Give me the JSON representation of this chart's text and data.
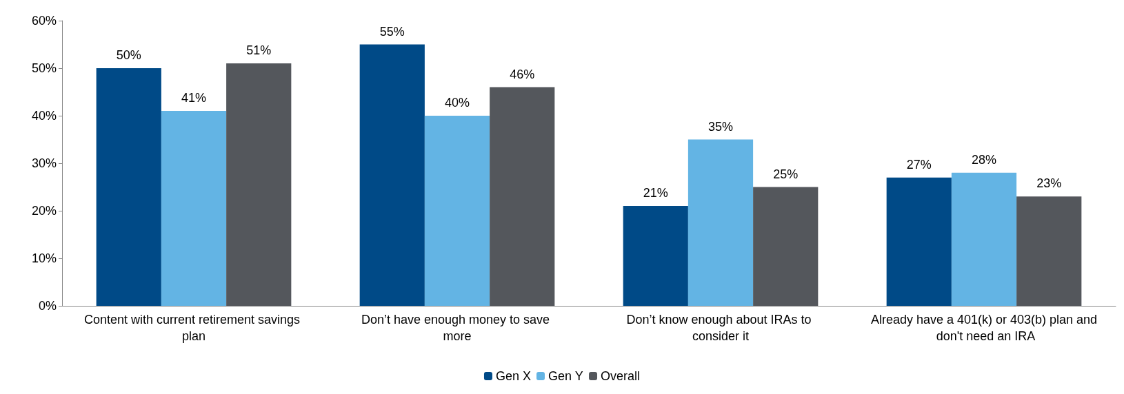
{
  "chart_data": {
    "type": "bar",
    "categories": [
      "Content with current retirement savings plan",
      "Don’t have enough money to save more",
      "Don’t know enough about IRAs to consider it",
      "Already have a 401(k) or 403(b) plan and don't need an IRA"
    ],
    "series": [
      {
        "name": "Gen X",
        "color": "#004a87",
        "values": [
          50,
          55,
          21,
          27
        ],
        "value_labels": [
          "50%",
          "55%",
          "21%",
          "27%"
        ]
      },
      {
        "name": "Gen Y",
        "color": "#63b4e4",
        "values": [
          41,
          40,
          35,
          28
        ],
        "value_labels": [
          "41%",
          "40%",
          "35%",
          "28%"
        ]
      },
      {
        "name": "Overall",
        "color": "#54575c",
        "values": [
          51,
          46,
          25,
          23
        ],
        "value_labels": [
          "51%",
          "46%",
          "25%",
          "23%"
        ]
      }
    ],
    "ylim": [
      0,
      60
    ],
    "yticks": [
      {
        "value": 0,
        "label": "0%"
      },
      {
        "value": 10,
        "label": "10%"
      },
      {
        "value": 20,
        "label": "20%"
      },
      {
        "value": 30,
        "label": "30%"
      },
      {
        "value": 40,
        "label": "40%"
      },
      {
        "value": 50,
        "label": "50%"
      },
      {
        "value": 60,
        "label": "60%"
      }
    ],
    "grid": false,
    "legend": "bottom"
  }
}
